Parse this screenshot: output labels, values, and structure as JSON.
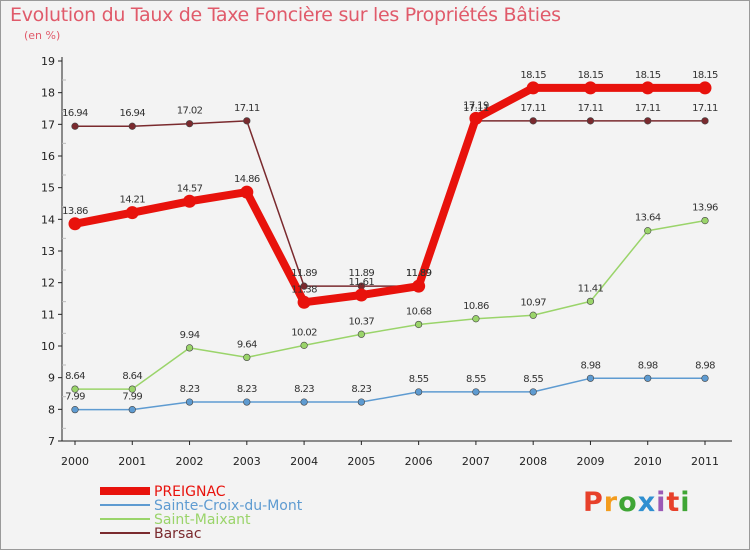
{
  "header": {
    "title": "Evolution du Taux de Taxe Foncière sur les Propriétés Bâties",
    "unit": "(en %)"
  },
  "logo": {
    "text": "Proxiti",
    "colors": [
      "#e7402a",
      "#f39c1d",
      "#3fa535",
      "#2f8fd1",
      "#9b59b6",
      "#e7402a",
      "#3fa535"
    ]
  },
  "chart_data": {
    "type": "line",
    "title": "Evolution du Taux de Taxe Foncière sur les Propriétés Bâties",
    "ylabel": "(en %)",
    "xlabel": "",
    "x": [
      "2000",
      "2001",
      "2002",
      "2003",
      "2004",
      "2005",
      "2006",
      "2007",
      "2008",
      "2009",
      "2010",
      "2011"
    ],
    "ylim": [
      7,
      19
    ],
    "yticks": [
      "7",
      "8",
      "9",
      "10",
      "11",
      "12",
      "13",
      "14",
      "15",
      "16",
      "17",
      "18",
      "19"
    ],
    "grid": false,
    "legend": "bottom-left",
    "series": [
      {
        "name": "PREIGNAC",
        "color": "#e8120c",
        "values": [
          13.86,
          14.21,
          14.57,
          14.86,
          11.38,
          11.61,
          11.89,
          17.19,
          18.15,
          18.15,
          18.15,
          18.15
        ],
        "labels": [
          "13.86",
          "14.21",
          "14.57",
          "14.86",
          "11.38",
          "11.61",
          "11.89",
          "17.19",
          "18.15",
          "18.15",
          "18.15",
          "18.15"
        ]
      },
      {
        "name": "Sainte-Croix-du-Mont",
        "color": "#5e9bd1",
        "values": [
          7.99,
          7.99,
          8.23,
          8.23,
          8.23,
          8.23,
          8.55,
          8.55,
          8.55,
          8.98,
          8.98,
          8.98
        ],
        "labels": [
          "7.99",
          "7.99",
          "8.23",
          "8.23",
          "8.23",
          "8.23",
          "8.55",
          "8.55",
          "8.55",
          "8.98",
          "8.98",
          "8.98"
        ]
      },
      {
        "name": "Saint-Maixant",
        "color": "#9ad46a",
        "values": [
          8.64,
          8.64,
          9.94,
          9.64,
          10.02,
          10.37,
          10.68,
          10.86,
          10.97,
          11.41,
          13.64,
          13.96
        ],
        "labels": [
          "8.64",
          "8.64",
          "9.94",
          "9.64",
          "10.02",
          "10.37",
          "10.68",
          "10.86",
          "10.97",
          "11.41",
          "13.64",
          "13.96"
        ]
      },
      {
        "name": "Barsac",
        "color": "#7a2a2e",
        "values": [
          16.94,
          16.94,
          17.02,
          17.11,
          11.89,
          11.89,
          11.89,
          17.11,
          17.11,
          17.11,
          17.11,
          17.11
        ],
        "labels": [
          "16.94",
          "16.94",
          "17.02",
          "17.11",
          "11.89",
          "11.89",
          "11.89",
          "17.11",
          "17.11",
          "17.11",
          "17.11",
          "17.11"
        ]
      }
    ]
  }
}
